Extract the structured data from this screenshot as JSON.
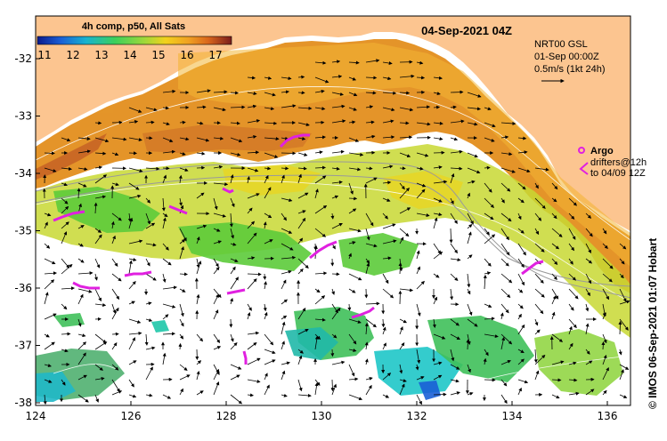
{
  "map": {
    "title": "04-Sep-2021 04Z",
    "product_label": "4h comp, p50, All Sats",
    "colorbar": {
      "ticks": [
        "11",
        "12",
        "13",
        "14",
        "15",
        "16",
        "17"
      ],
      "colors": [
        "#0b1a8c",
        "#1a5fd6",
        "#18b3d0",
        "#3cd05a",
        "#9ed83a",
        "#f2d21c",
        "#f0a022",
        "#d9661c",
        "#a8401a",
        "#7a1c1c"
      ]
    },
    "currents_label": {
      "line1": "NRT00 GSL",
      "line2": "01-Sep 00:00Z",
      "line3": "0.5m/s (1kt 24h)"
    },
    "legend": {
      "argo": "Argo",
      "drifters_line1": "drifters@12h",
      "drifters_line2": "to 04/09 12Z"
    },
    "x_ticks": [
      "124",
      "126",
      "128",
      "130",
      "132",
      "134",
      "136"
    ],
    "y_ticks": [
      "-32",
      "-33",
      "-34",
      "-35",
      "-36",
      "-37",
      "-38"
    ],
    "credit": "© IMOS 06-Sep-2021 01:07 Hobart",
    "colors": {
      "land": "#fcc590",
      "drifter": "#e020e0",
      "contour": "#ffffff",
      "isobath": "#9a9a9a"
    }
  }
}
